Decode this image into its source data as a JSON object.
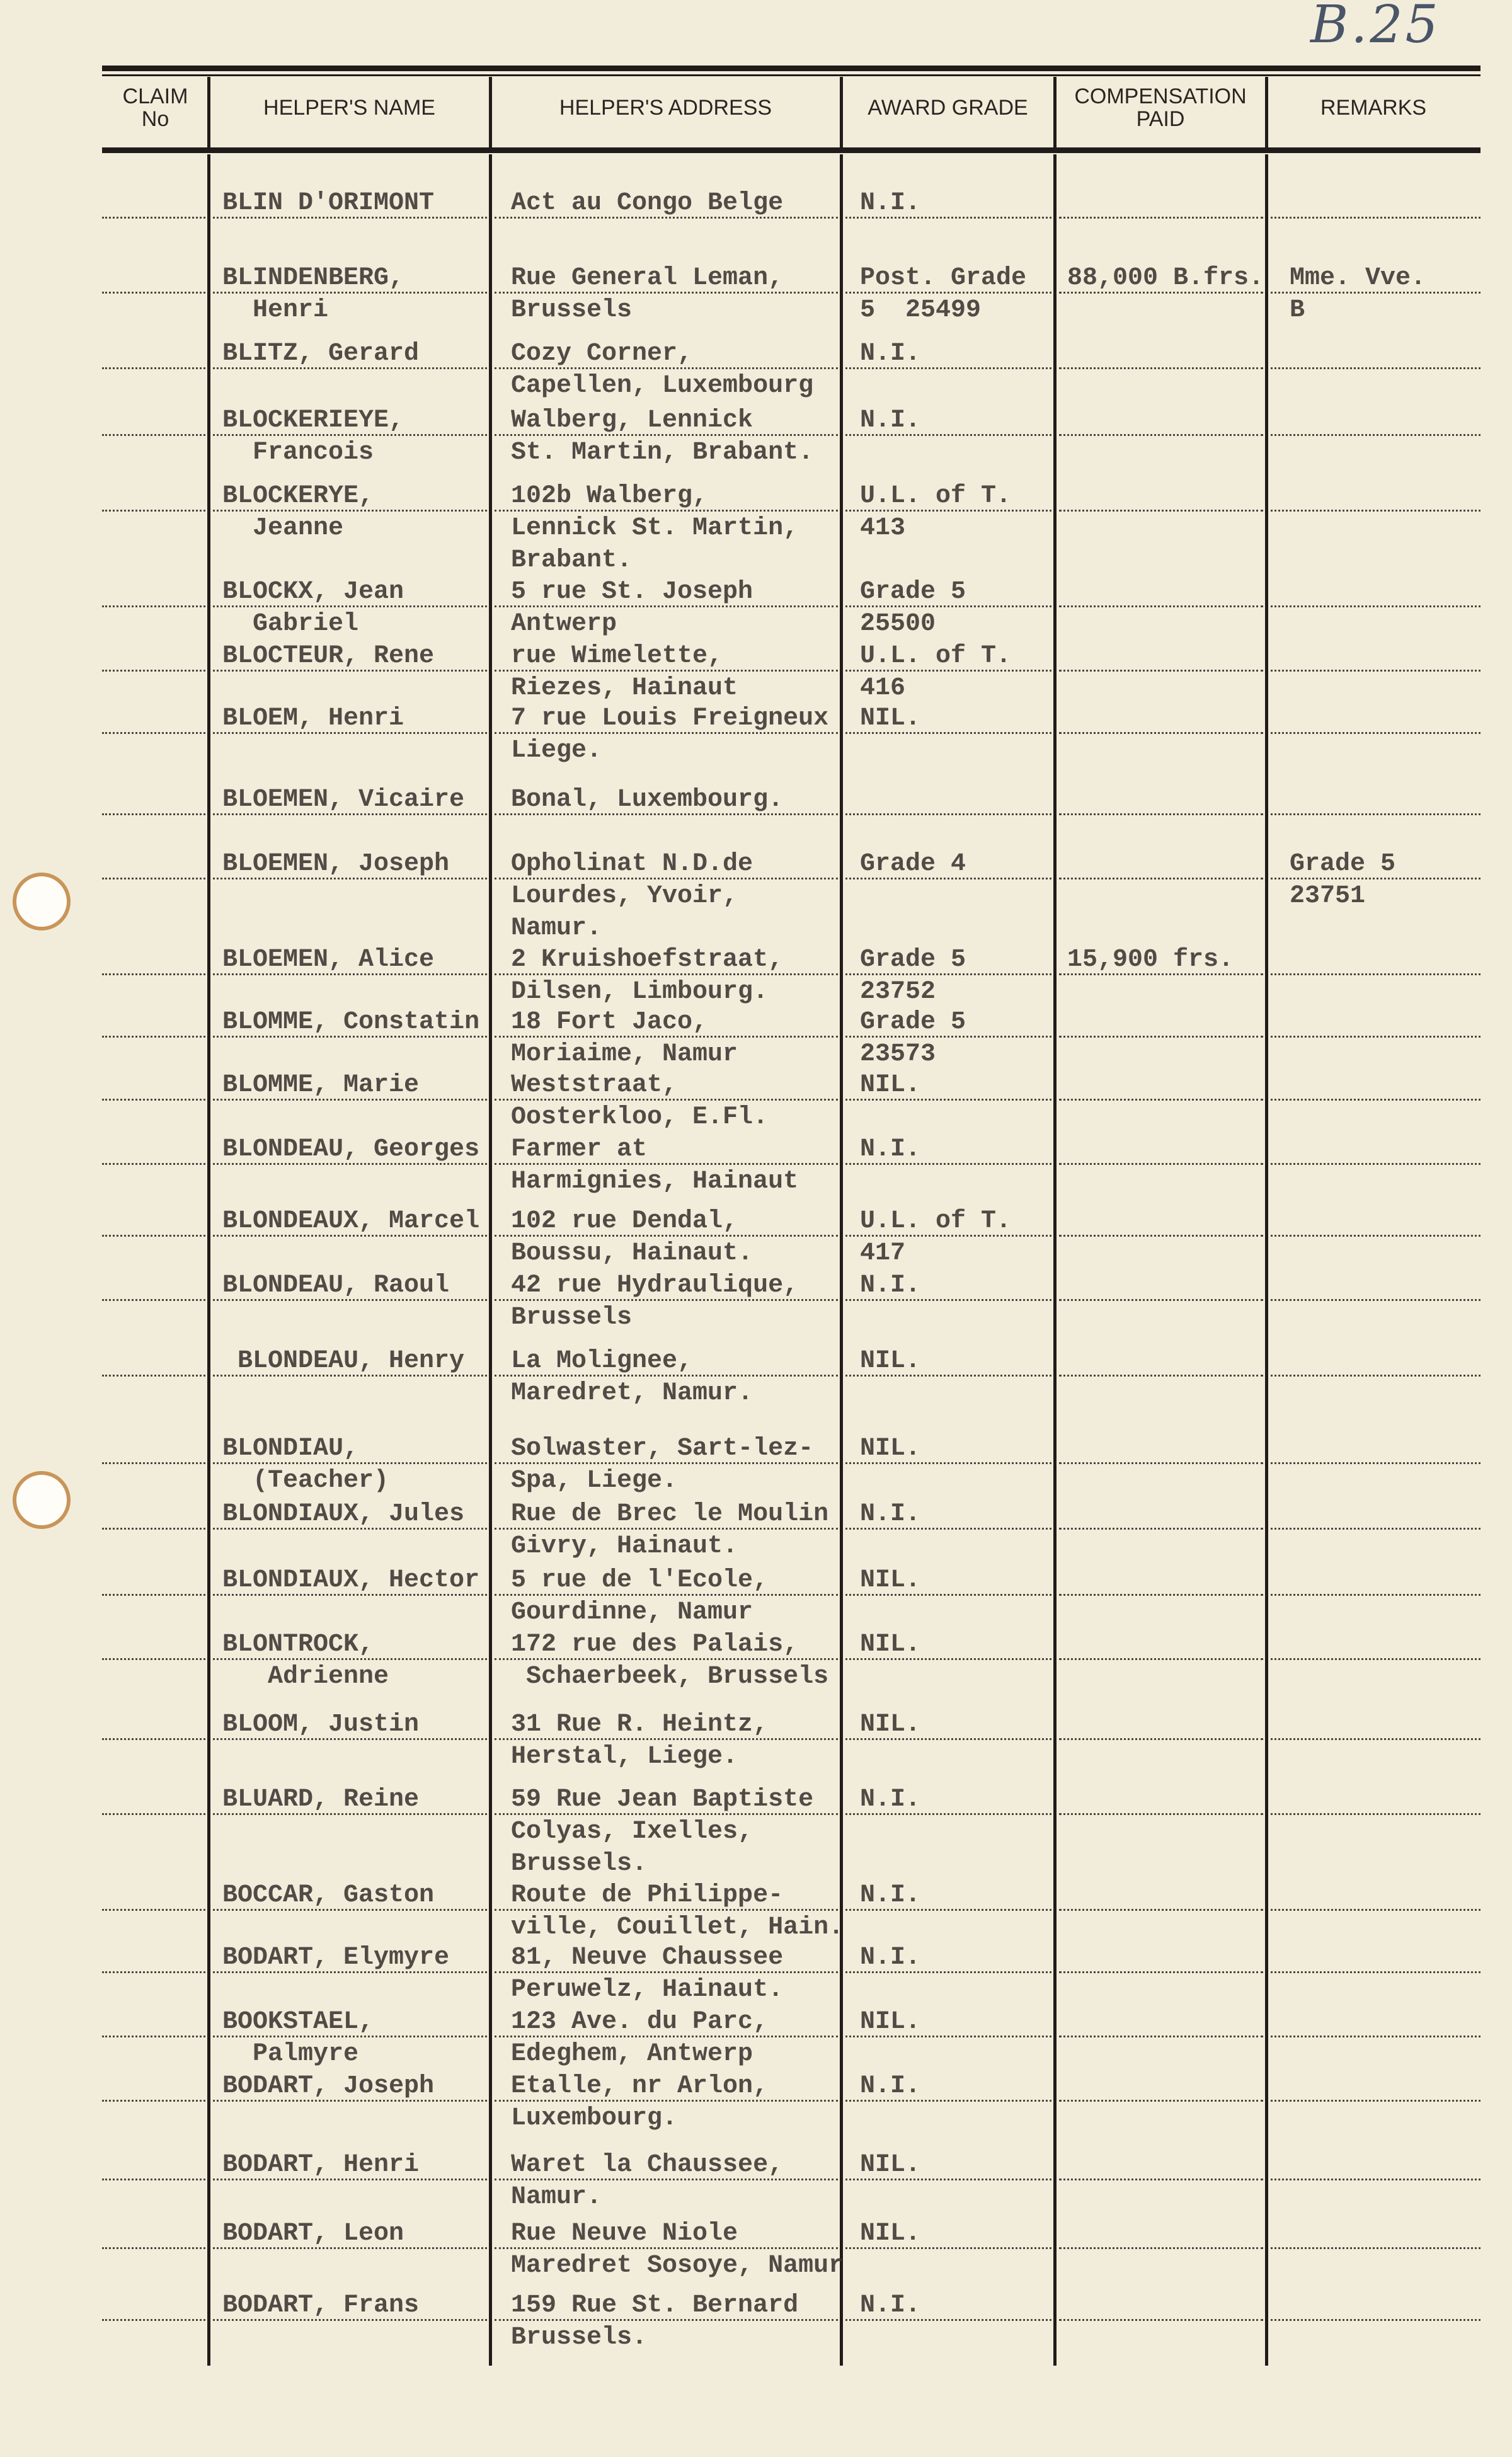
{
  "page_number": "B.25",
  "header": {
    "claim_no": [
      "CLAIM",
      "No"
    ],
    "helper_name": "HELPER'S NAME",
    "helper_address": "HELPER'S ADDRESS",
    "award_grade": "AWARD GRADE",
    "compensation_paid": [
      "COMPENSATION",
      "PAID"
    ],
    "remarks": "REMARKS"
  },
  "entries": [
    {
      "name": [
        "BLIN D'ORIMONT"
      ],
      "address": [
        "Act au Congo Belge"
      ],
      "award": [
        "N.I."
      ],
      "compensation": [],
      "remarks": []
    },
    {
      "name": [
        "BLINDENBERG,",
        "  Henri"
      ],
      "address": [
        "Rue General Leman,",
        "Brussels"
      ],
      "award": [
        "Post. Grade",
        "5  25499"
      ],
      "compensation": [
        "88,000 B.frs."
      ],
      "remarks": [
        "Mme. Vve.",
        "B"
      ]
    },
    {
      "name": [
        "BLITZ, Gerard"
      ],
      "address": [
        "Cozy Corner,",
        "Capellen, Luxembourg"
      ],
      "award": [
        "N.I."
      ],
      "compensation": [],
      "remarks": []
    },
    {
      "name": [
        "BLOCKERIEYE,",
        "  Francois"
      ],
      "address": [
        "Walberg, Lennick",
        "St. Martin, Brabant."
      ],
      "award": [
        "N.I."
      ],
      "compensation": [],
      "remarks": []
    },
    {
      "name": [
        "BLOCKERYE,",
        "  Jeanne"
      ],
      "address": [
        "102b Walberg,",
        "Lennick St. Martin,",
        "Brabant."
      ],
      "award": [
        "U.L. of T.",
        "413"
      ],
      "compensation": [],
      "remarks": []
    },
    {
      "name": [
        "BLOCKX, Jean",
        "  Gabriel"
      ],
      "address": [
        "5 rue St. Joseph",
        "Antwerp"
      ],
      "award": [
        "Grade 5",
        "25500"
      ],
      "compensation": [],
      "remarks": []
    },
    {
      "name": [
        "BLOCTEUR, Rene"
      ],
      "address": [
        "rue Wimelette,",
        "Riezes, Hainaut"
      ],
      "award": [
        "U.L. of T.",
        "416"
      ],
      "compensation": [],
      "remarks": []
    },
    {
      "name": [
        "BLOEM, Henri"
      ],
      "address": [
        "7 rue Louis Freigneux",
        "Liege."
      ],
      "award": [
        "NIL."
      ],
      "compensation": [],
      "remarks": []
    },
    {
      "name": [
        "BLOEMEN, Vicaire"
      ],
      "address": [
        "Bonal, Luxembourg."
      ],
      "award": [],
      "compensation": [],
      "remarks": []
    },
    {
      "name": [
        "BLOEMEN, Joseph"
      ],
      "address": [
        "Opholinat N.D.de",
        "Lourdes, Yvoir,",
        "Namur."
      ],
      "award": [
        "Grade 4"
      ],
      "compensation": [],
      "remarks": [
        "Grade 5",
        "23751"
      ]
    },
    {
      "name": [
        "BLOEMEN, Alice"
      ],
      "address": [
        "2 Kruishoefstraat,",
        "Dilsen, Limbourg."
      ],
      "award": [
        "Grade 5",
        "23752"
      ],
      "compensation": [
        "15,900 frs."
      ],
      "remarks": []
    },
    {
      "name": [
        "BLOMME, Constatin"
      ],
      "address": [
        "18 Fort Jaco,",
        "Moriaime, Namur"
      ],
      "award": [
        "Grade 5",
        "23573"
      ],
      "compensation": [],
      "remarks": []
    },
    {
      "name": [
        "BLOMME, Marie"
      ],
      "address": [
        "Weststraat,",
        "Oosterkloo, E.Fl."
      ],
      "award": [
        "NIL."
      ],
      "compensation": [],
      "remarks": []
    },
    {
      "name": [
        "BLONDEAU, Georges"
      ],
      "address": [
        "Farmer at",
        "Harmignies, Hainaut"
      ],
      "award": [
        "N.I."
      ],
      "compensation": [],
      "remarks": []
    },
    {
      "name": [
        "BLONDEAUX, Marcel"
      ],
      "address": [
        "102 rue Dendal,",
        "Boussu, Hainaut."
      ],
      "award": [
        "U.L. of T.",
        "417"
      ],
      "compensation": [],
      "remarks": []
    },
    {
      "name": [
        "BLONDEAU, Raoul"
      ],
      "address": [
        "42 rue Hydraulique,",
        "Brussels"
      ],
      "award": [
        "N.I."
      ],
      "compensation": [],
      "remarks": []
    },
    {
      "name": [
        " BLONDEAU, Henry"
      ],
      "address": [
        "La Molignee,",
        "Maredret, Namur."
      ],
      "award": [
        "NIL."
      ],
      "compensation": [],
      "remarks": []
    },
    {
      "name": [
        "BLONDIAU,",
        "  (Teacher)"
      ],
      "address": [
        "Solwaster, Sart-lez-",
        "Spa, Liege."
      ],
      "award": [
        "NIL."
      ],
      "compensation": [],
      "remarks": []
    },
    {
      "name": [
        "BLONDIAUX, Jules"
      ],
      "address": [
        "Rue de Brec le Moulin",
        "Givry, Hainaut."
      ],
      "award": [
        "N.I."
      ],
      "compensation": [],
      "remarks": []
    },
    {
      "name": [
        "BLONDIAUX, Hector"
      ],
      "address": [
        "5 rue de l'Ecole,",
        "Gourdinne, Namur"
      ],
      "award": [
        "NIL."
      ],
      "compensation": [],
      "remarks": []
    },
    {
      "name": [
        "BLONTROCK,",
        "   Adrienne"
      ],
      "address": [
        "172 rue des Palais,",
        " Schaerbeek, Brussels"
      ],
      "award": [
        "NIL."
      ],
      "compensation": [],
      "remarks": []
    },
    {
      "name": [
        "BLOOM, Justin"
      ],
      "address": [
        "31 Rue R. Heintz,",
        "Herstal, Liege."
      ],
      "award": [
        "NIL."
      ],
      "compensation": [],
      "remarks": []
    },
    {
      "name": [
        "BLUARD, Reine"
      ],
      "address": [
        "59 Rue Jean Baptiste",
        "Colyas, Ixelles,",
        "Brussels."
      ],
      "award": [
        "N.I."
      ],
      "compensation": [],
      "remarks": []
    },
    {
      "name": [
        "BOCCAR, Gaston"
      ],
      "address": [
        "Route de Philippe-",
        "ville, Couillet, Hain."
      ],
      "award": [
        "N.I."
      ],
      "compensation": [],
      "remarks": []
    },
    {
      "name": [
        "BODART, Elymyre"
      ],
      "address": [
        "81, Neuve Chaussee",
        "Peruwelz, Hainaut."
      ],
      "award": [
        "N.I."
      ],
      "compensation": [],
      "remarks": []
    },
    {
      "name": [
        "BOOKSTAEL,",
        "  Palmyre"
      ],
      "address": [
        "123 Ave. du Parc,",
        "Edeghem, Antwerp"
      ],
      "award": [
        "NIL."
      ],
      "compensation": [],
      "remarks": []
    },
    {
      "name": [
        "BODART, Joseph"
      ],
      "address": [
        "Etalle, nr Arlon,",
        "Luxembourg."
      ],
      "award": [
        "N.I."
      ],
      "compensation": [],
      "remarks": []
    },
    {
      "name": [
        "BODART, Henri"
      ],
      "address": [
        "Waret la Chaussee,",
        "Namur."
      ],
      "award": [
        "NIL."
      ],
      "compensation": [],
      "remarks": []
    },
    {
      "name": [
        "BODART, Leon"
      ],
      "address": [
        "Rue Neuve Niole",
        "Maredret Sosoye, Namur"
      ],
      "award": [
        "NIL."
      ],
      "compensation": [],
      "remarks": []
    },
    {
      "name": [
        "BODART, Frans"
      ],
      "address": [
        "159 Rue St. Bernard",
        "Brussels."
      ],
      "award": [
        "N.I."
      ],
      "compensation": [],
      "remarks": []
    }
  ]
}
